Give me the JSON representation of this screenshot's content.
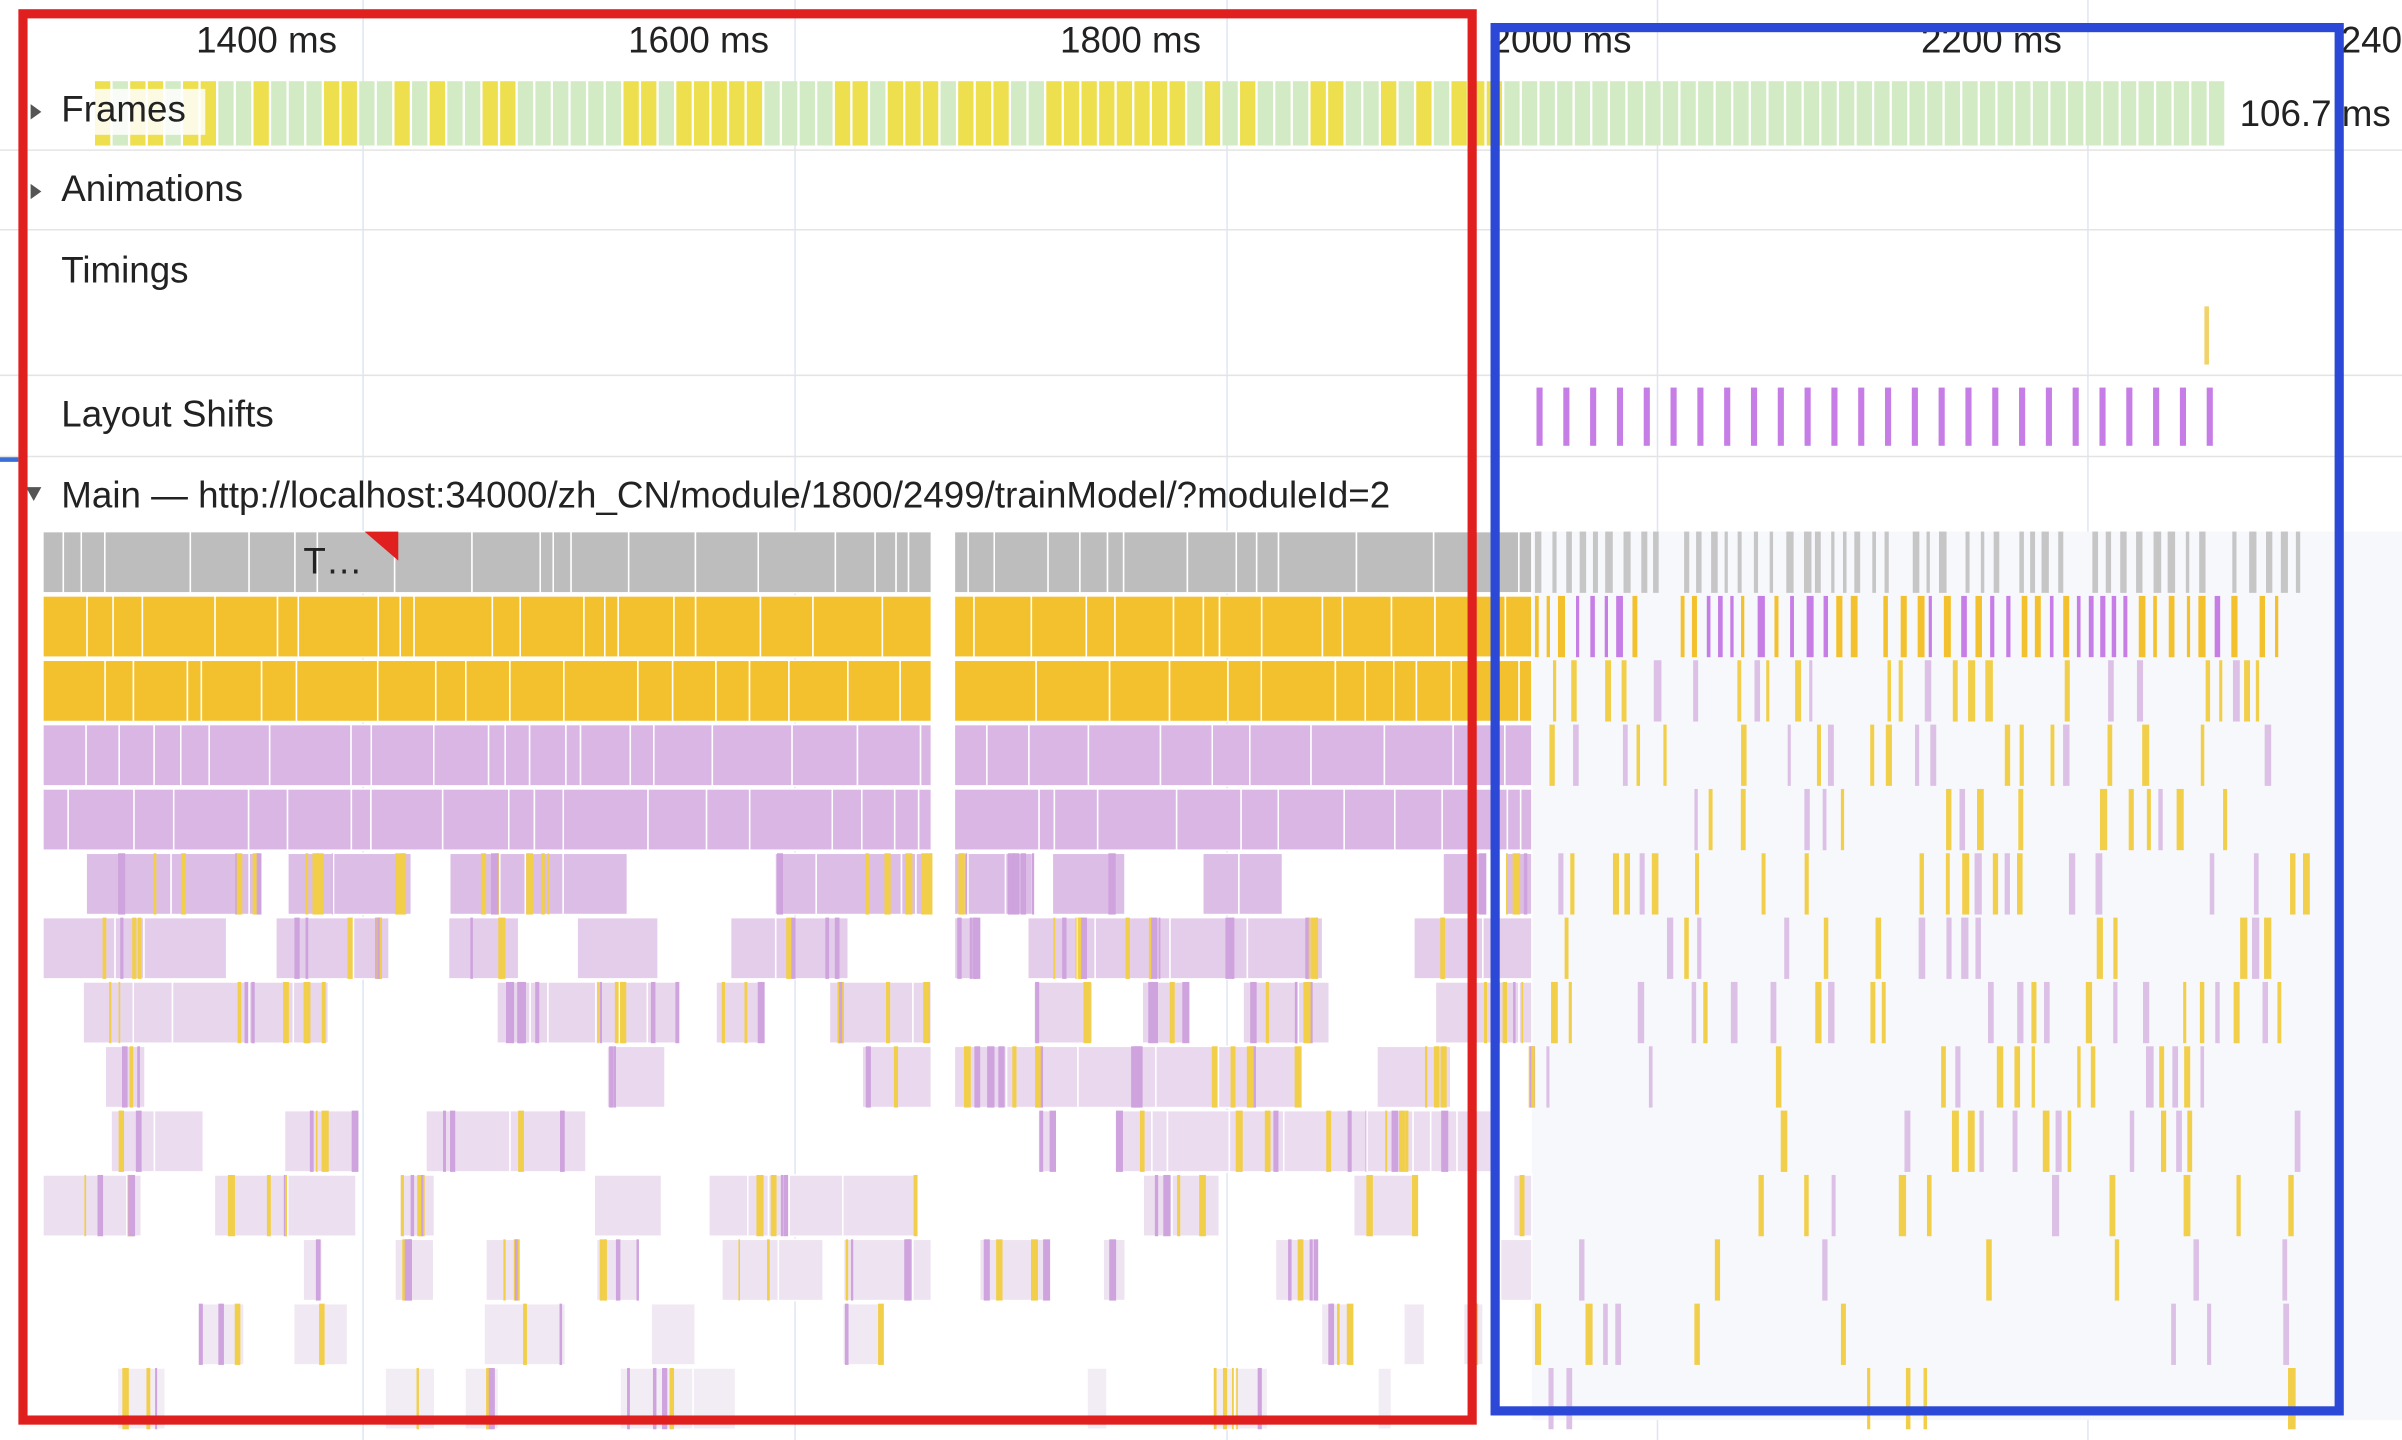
{
  "ruler": {
    "ticks": [
      "1400 ms",
      "1600 ms",
      "1800 ms",
      "2000 ms",
      "2200 ms",
      "240"
    ]
  },
  "tracks": {
    "frames": {
      "label": "Frames",
      "duration": "106.7 ms"
    },
    "animations": {
      "label": "Animations"
    },
    "timings": {
      "label": "Timings"
    },
    "layout_shifts": {
      "label": "Layout Shifts"
    },
    "main": {
      "label": "Main — http://localhost:34000/zh_CN/module/1800/2499/trainModel/?moduleId=2"
    }
  },
  "flame": {
    "task_label": "T…"
  }
}
